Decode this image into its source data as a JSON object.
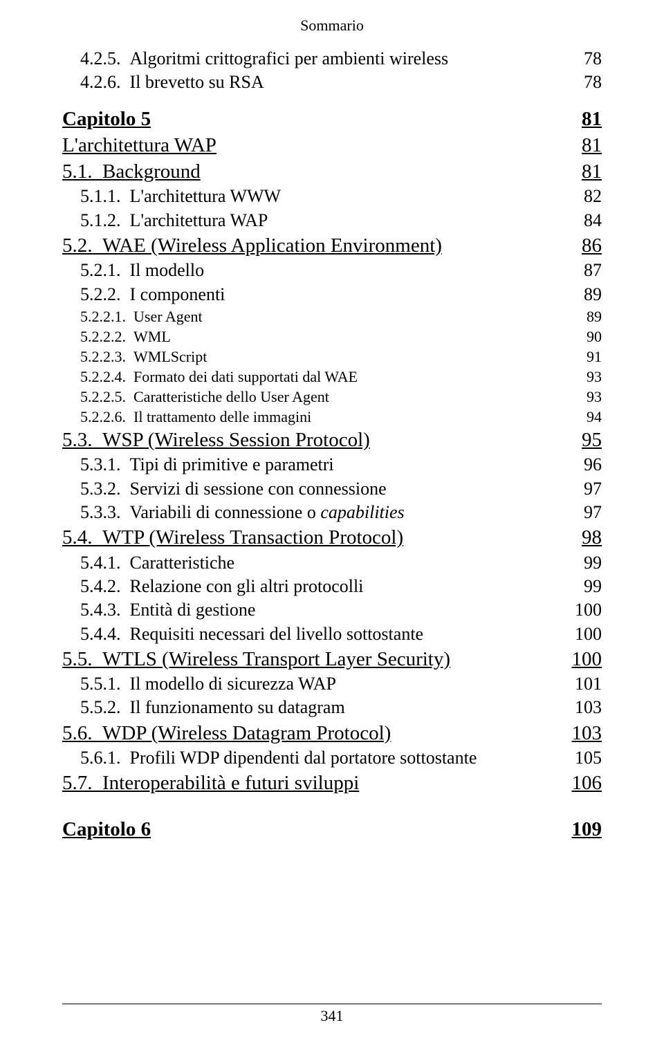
{
  "header": "Sommario",
  "page_number": "341",
  "entries": [
    {
      "level": 3,
      "num": "4.2.5.",
      "text": "Algoritmi crittografici per ambienti wireless",
      "page": "78"
    },
    {
      "level": 3,
      "num": "4.2.6.",
      "text": "Il brevetto su RSA",
      "page": "78"
    },
    {
      "level": 1,
      "num": "",
      "text": "Capitolo 5",
      "page": "81",
      "underline": true,
      "bold": true,
      "space_before": "md"
    },
    {
      "level": 1,
      "num": "",
      "text": "L'architettura WAP",
      "page": "81",
      "underline": true
    },
    {
      "level": 2,
      "num": "5.1.",
      "text": "Background",
      "page": "81",
      "underline": true
    },
    {
      "level": 3,
      "num": "5.1.1.",
      "text": "L'architettura WWW",
      "page": "82"
    },
    {
      "level": 3,
      "num": "5.1.2.",
      "text": "L'architettura WAP",
      "page": "84"
    },
    {
      "level": 2,
      "num": "5.2.",
      "text": "WAE (Wireless Application Environment)",
      "page": "86",
      "underline": true
    },
    {
      "level": 3,
      "num": "5.2.1.",
      "text": "Il modello",
      "page": "87"
    },
    {
      "level": 3,
      "num": "5.2.2.",
      "text": "I componenti",
      "page": "89"
    },
    {
      "level": 4,
      "num": "5.2.2.1.",
      "text": "User Agent",
      "page": "89"
    },
    {
      "level": 4,
      "num": "5.2.2.2.",
      "text": "WML",
      "page": "90"
    },
    {
      "level": 4,
      "num": "5.2.2.3.",
      "text": "WMLScript",
      "page": "91"
    },
    {
      "level": 4,
      "num": "5.2.2.4.",
      "text": "Formato dei dati supportati dal WAE",
      "page": "93"
    },
    {
      "level": 4,
      "num": "5.2.2.5.",
      "text": "Caratteristiche dello User Agent",
      "page": "93"
    },
    {
      "level": 4,
      "num": "5.2.2.6.",
      "text": "Il trattamento delle immagini",
      "page": "94"
    },
    {
      "level": 2,
      "num": "5.3.",
      "text": "WSP (Wireless Session Protocol)",
      "page": "95",
      "underline": true
    },
    {
      "level": 3,
      "num": "5.3.1.",
      "text": "Tipi di primitive e parametri",
      "page": "96"
    },
    {
      "level": 3,
      "num": "5.3.2.",
      "text": "Servizi di sessione con connessione",
      "page": "97"
    },
    {
      "level": 3,
      "num": "5.3.3.",
      "text_parts": [
        {
          "t": "Variabili di connessione o "
        },
        {
          "t": "capabilities",
          "italic": true
        }
      ],
      "page": "97"
    },
    {
      "level": 2,
      "num": "5.4.",
      "text": "WTP (Wireless Transaction Protocol)",
      "page": "98",
      "underline": true
    },
    {
      "level": 3,
      "num": "5.4.1.",
      "text": "Caratteristiche",
      "page": "99"
    },
    {
      "level": 3,
      "num": "5.4.2.",
      "text": "Relazione con gli altri protocolli",
      "page": "99"
    },
    {
      "level": 3,
      "num": "5.4.3.",
      "text": "Entità di gestione",
      "page": "100"
    },
    {
      "level": 3,
      "num": "5.4.4.",
      "text": "Requisiti necessari del livello sottostante",
      "page": "100"
    },
    {
      "level": 2,
      "num": "5.5.",
      "text": "WTLS (Wireless Transport Layer Security)",
      "page": "100",
      "underline": true
    },
    {
      "level": 3,
      "num": "5.5.1.",
      "text": "Il modello di sicurezza WAP",
      "page": "101"
    },
    {
      "level": 3,
      "num": "5.5.2.",
      "text": "Il funzionamento su datagram",
      "page": "103"
    },
    {
      "level": 2,
      "num": "5.6.",
      "text": "WDP (Wireless Datagram Protocol)",
      "page": "103",
      "underline": true
    },
    {
      "level": 3,
      "num": "5.6.1.",
      "text": "Profili WDP dipendenti dal portatore sottostante",
      "page": "105"
    },
    {
      "level": 2,
      "num": "5.7.",
      "text": "Interoperabilità e futuri sviluppi",
      "page": "106",
      "underline": true
    },
    {
      "level": 1,
      "num": "",
      "text": "Capitolo 6",
      "page": "109",
      "underline": true,
      "bold": true,
      "space_before": "lg"
    }
  ]
}
